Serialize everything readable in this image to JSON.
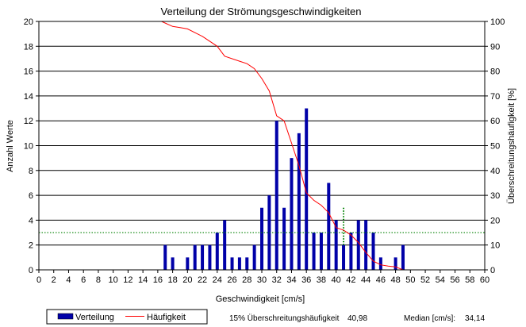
{
  "chart_data": {
    "type": "bar",
    "title": "Verteilung der Strömungsgeschwindigkeiten",
    "xlabel": "Geschwindigkeit [cm/s]",
    "ylabel": "Anzahl Werte",
    "y2label": "Überschreitungshäufigkeit [%]",
    "xlim": [
      0,
      60
    ],
    "ylim": [
      0,
      20
    ],
    "y2lim": [
      0,
      100
    ],
    "x_ticks": [
      "0",
      "2",
      "4",
      "6",
      "8",
      "10",
      "12",
      "14",
      "16",
      "18",
      "20",
      "22",
      "24",
      "26",
      "28",
      "30",
      "32",
      "34",
      "36",
      "38",
      "40",
      "42",
      "44",
      "46",
      "48",
      "50",
      "52",
      "54",
      "56",
      "58",
      "60"
    ],
    "y_ticks": [
      "0",
      "2",
      "4",
      "6",
      "8",
      "10",
      "12",
      "14",
      "16",
      "18",
      "20"
    ],
    "y2_ticks": [
      "0",
      "10",
      "20",
      "30",
      "40",
      "50",
      "60",
      "70",
      "80",
      "90",
      "100"
    ],
    "grid": true,
    "legend_position": "bottom-left",
    "colors": {
      "bars": "#0000a8",
      "line": "#ff0000",
      "reference": "#008000"
    },
    "series": [
      {
        "name": "Verteilung",
        "type": "bar",
        "x": [
          17,
          18,
          20,
          21,
          22,
          23,
          24,
          25,
          26,
          27,
          28,
          29,
          30,
          31,
          32,
          33,
          34,
          35,
          36,
          37,
          38,
          39,
          40,
          41,
          42,
          43,
          44,
          45,
          46,
          48,
          49
        ],
        "values": [
          2,
          1,
          1,
          2,
          2,
          2,
          3,
          4,
          1,
          1,
          1,
          2,
          5,
          6,
          12,
          5,
          9,
          11,
          13,
          3,
          3,
          7,
          4,
          2,
          3,
          4,
          4,
          3,
          1,
          1,
          2
        ]
      },
      {
        "name": "Häufigkeit",
        "type": "line",
        "axis": "secondary",
        "x": [
          16.5,
          18,
          19,
          20,
          22,
          24,
          25,
          27,
          28,
          29,
          30,
          31,
          32,
          33,
          34,
          35,
          36,
          37,
          38,
          39,
          40,
          41,
          42,
          43,
          44,
          45,
          46,
          47,
          48,
          49
        ],
        "values": [
          100,
          98,
          97.5,
          97,
          94,
          90,
          86,
          84,
          83,
          81,
          77,
          72,
          62,
          60,
          51,
          42,
          31,
          28,
          26,
          23,
          17,
          16,
          14,
          11,
          7,
          3.5,
          2,
          1.5,
          1.2,
          0
        ]
      }
    ],
    "reference_line": {
      "axis": "primary",
      "y": 3
    },
    "marker_line": {
      "x": 41,
      "y": [
        2,
        5
      ]
    }
  },
  "footer": {
    "percentile_label": "15% Überschreitungshäufigkeit",
    "percentile_value": "40,98",
    "median_label": "Median [cm/s]:",
    "median_value": "34,14"
  }
}
